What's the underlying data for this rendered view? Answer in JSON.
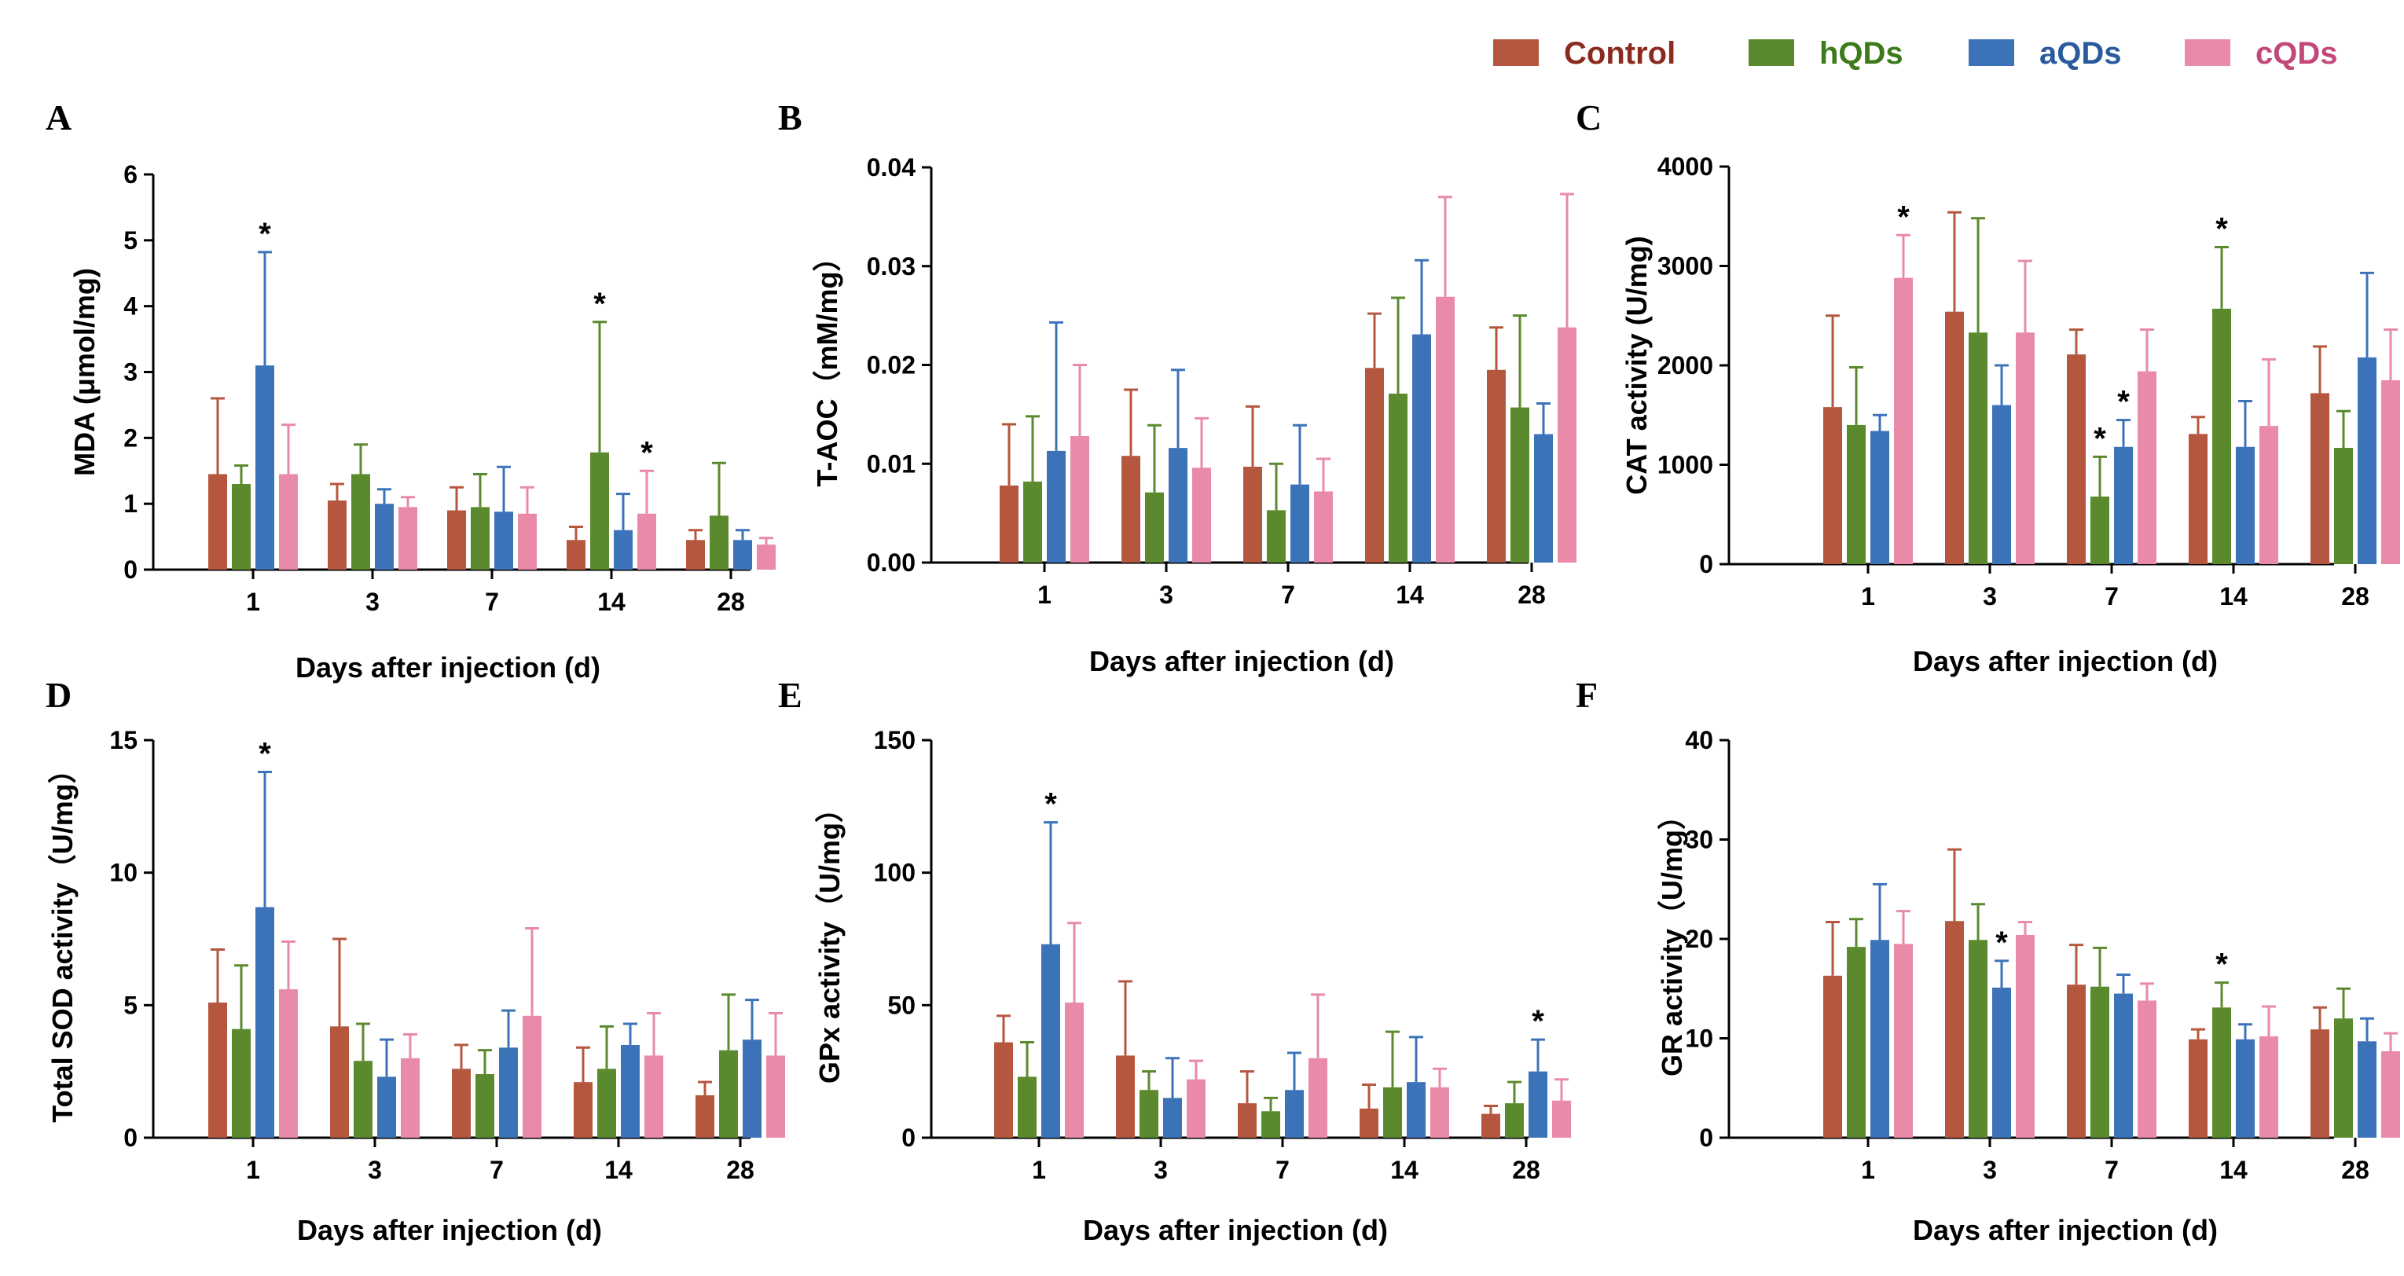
{
  "legend": [
    {
      "name": "Control",
      "color": "#b5573f",
      "text_color": "#8b2a1e"
    },
    {
      "name": "hQDs",
      "color": "#5b8a2e",
      "text_color": "#3d7a1a"
    },
    {
      "name": "aQDs",
      "color": "#3c73b8",
      "text_color": "#2a5a9e"
    },
    {
      "name": "cQDs",
      "color": "#e88aa8",
      "text_color": "#c2477a"
    }
  ],
  "chart_data": [
    {
      "panel": "A",
      "type": "bar",
      "title": "",
      "ylabel": "MDA (μmol/mg)",
      "xlabel": "Days after injection (d)",
      "ylim": [
        0,
        6
      ],
      "yticks": [
        "0",
        "1",
        "2",
        "3",
        "4",
        "5",
        "6"
      ],
      "categories": [
        "1",
        "3",
        "7",
        "14",
        "28"
      ],
      "series": [
        {
          "name": "Control",
          "values": [
            1.45,
            1.05,
            0.9,
            0.45,
            0.45
          ],
          "errors": [
            1.15,
            0.25,
            0.35,
            0.2,
            0.15
          ]
        },
        {
          "name": "hQDs",
          "values": [
            1.3,
            1.45,
            0.95,
            1.78,
            0.82
          ],
          "errors": [
            0.28,
            0.45,
            0.5,
            1.98,
            0.8
          ]
        },
        {
          "name": "aQDs",
          "values": [
            3.1,
            1.0,
            0.88,
            0.6,
            0.45
          ],
          "errors": [
            1.72,
            0.22,
            0.68,
            0.55,
            0.15
          ]
        },
        {
          "name": "cQDs",
          "values": [
            1.45,
            0.95,
            0.85,
            0.85,
            0.38
          ],
          "errors": [
            0.75,
            0.15,
            0.4,
            0.65,
            0.1
          ]
        }
      ],
      "annotations": [
        {
          "category": "1",
          "series": "aQDs",
          "text": "*"
        },
        {
          "category": "14",
          "series": "hQDs",
          "text": "*"
        },
        {
          "category": "14",
          "series": "cQDs",
          "text": "*"
        }
      ]
    },
    {
      "panel": "B",
      "type": "bar",
      "title": "",
      "ylabel": "T-AOC（mM/mg）",
      "xlabel": "Days after injection (d)",
      "ylim": [
        0,
        0.04
      ],
      "yticks": [
        "0.00",
        "0.01",
        "0.02",
        "0.03",
        "0.04"
      ],
      "categories": [
        "1",
        "3",
        "7",
        "14",
        "28"
      ],
      "series": [
        {
          "name": "Control",
          "values": [
            0.0078,
            0.0108,
            0.0097,
            0.0197,
            0.0195
          ],
          "errors": [
            0.0062,
            0.0067,
            0.0061,
            0.0055,
            0.0043
          ]
        },
        {
          "name": "hQDs",
          "values": [
            0.0082,
            0.0071,
            0.0053,
            0.0171,
            0.0157
          ],
          "errors": [
            0.0066,
            0.0068,
            0.0047,
            0.0097,
            0.0093
          ]
        },
        {
          "name": "aQDs",
          "values": [
            0.0113,
            0.0116,
            0.0079,
            0.0231,
            0.013
          ],
          "errors": [
            0.013,
            0.0079,
            0.006,
            0.0075,
            0.0031
          ]
        },
        {
          "name": "cQDs",
          "values": [
            0.0128,
            0.0096,
            0.0072,
            0.0269,
            0.0238
          ],
          "errors": [
            0.0072,
            0.005,
            0.0033,
            0.0101,
            0.0135
          ]
        }
      ],
      "annotations": []
    },
    {
      "panel": "C",
      "type": "bar",
      "title": "",
      "ylabel": "CAT activity (U/mg)",
      "xlabel": "Days after injection (d)",
      "ylim": [
        0,
        4000
      ],
      "yticks": [
        "0",
        "1000",
        "2000",
        "3000",
        "4000"
      ],
      "categories": [
        "1",
        "3",
        "7",
        "14",
        "28"
      ],
      "series": [
        {
          "name": "Control",
          "values": [
            1580,
            2540,
            2110,
            1310,
            1720
          ],
          "errors": [
            920,
            1000,
            250,
            170,
            470
          ]
        },
        {
          "name": "hQDs",
          "values": [
            1400,
            2330,
            680,
            2570,
            1170
          ],
          "errors": [
            580,
            1150,
            400,
            620,
            370
          ]
        },
        {
          "name": "aQDs",
          "values": [
            1340,
            1600,
            1180,
            1180,
            2080
          ],
          "errors": [
            160,
            400,
            270,
            460,
            850
          ]
        },
        {
          "name": "cQDs",
          "values": [
            2880,
            2330,
            1940,
            1390,
            1850
          ],
          "errors": [
            430,
            720,
            420,
            670,
            510
          ]
        }
      ],
      "annotations": [
        {
          "category": "1",
          "series": "cQDs",
          "text": "*"
        },
        {
          "category": "7",
          "series": "hQDs",
          "text": "*"
        },
        {
          "category": "7",
          "series": "aQDs",
          "text": "*"
        },
        {
          "category": "14",
          "series": "hQDs",
          "text": "*"
        }
      ]
    },
    {
      "panel": "D",
      "type": "bar",
      "title": "",
      "ylabel": "Total SOD activity（U/mg）",
      "xlabel": "Days after injection (d)",
      "ylim": [
        0,
        15
      ],
      "yticks": [
        "0",
        "5",
        "10",
        "15"
      ],
      "categories": [
        "1",
        "3",
        "7",
        "14",
        "28"
      ],
      "series": [
        {
          "name": "Control",
          "values": [
            5.1,
            4.2,
            2.6,
            2.1,
            1.6
          ],
          "errors": [
            2.0,
            3.3,
            0.9,
            1.3,
            0.5
          ]
        },
        {
          "name": "hQDs",
          "values": [
            4.1,
            2.9,
            2.4,
            2.6,
            3.3
          ],
          "errors": [
            2.4,
            1.4,
            0.9,
            1.6,
            2.1
          ]
        },
        {
          "name": "aQDs",
          "values": [
            8.7,
            2.3,
            3.4,
            3.5,
            3.7
          ],
          "errors": [
            5.1,
            1.4,
            1.4,
            0.8,
            1.5
          ]
        },
        {
          "name": "cQDs",
          "values": [
            5.6,
            3.0,
            4.6,
            3.1,
            3.1
          ],
          "errors": [
            1.8,
            0.9,
            3.3,
            1.6,
            1.6
          ]
        }
      ],
      "annotations": [
        {
          "category": "1",
          "series": "aQDs",
          "text": "*"
        }
      ]
    },
    {
      "panel": "E",
      "type": "bar",
      "title": "",
      "ylabel": "GPx activity（U/mg）",
      "xlabel": "Days after injection (d)",
      "ylim": [
        0,
        150
      ],
      "yticks": [
        "0",
        "50",
        "100",
        "150"
      ],
      "categories": [
        "1",
        "3",
        "7",
        "14",
        "28"
      ],
      "series": [
        {
          "name": "Control",
          "values": [
            36,
            31,
            13,
            11,
            9
          ],
          "errors": [
            10,
            28,
            12,
            9,
            3
          ]
        },
        {
          "name": "hQDs",
          "values": [
            23,
            18,
            10,
            19,
            13
          ],
          "errors": [
            13,
            7,
            5,
            21,
            8
          ]
        },
        {
          "name": "aQDs",
          "values": [
            73,
            15,
            18,
            21,
            25
          ],
          "errors": [
            46,
            15,
            14,
            17,
            12
          ]
        },
        {
          "name": "cQDs",
          "values": [
            51,
            22,
            30,
            19,
            14
          ],
          "errors": [
            30,
            7,
            24,
            7,
            8
          ]
        }
      ],
      "annotations": [
        {
          "category": "1",
          "series": "aQDs",
          "text": "*"
        },
        {
          "category": "28",
          "series": "aQDs",
          "text": "*"
        }
      ]
    },
    {
      "panel": "F",
      "type": "bar",
      "title": "",
      "ylabel": "GR activity（U/mg）",
      "xlabel": "Days after injection (d)",
      "ylim": [
        0,
        40
      ],
      "yticks": [
        "0",
        "10",
        "20",
        "30",
        "40"
      ],
      "categories": [
        "1",
        "3",
        "7",
        "14",
        "28"
      ],
      "series": [
        {
          "name": "Control",
          "values": [
            16.3,
            21.8,
            15.4,
            9.9,
            10.9
          ],
          "errors": [
            5.4,
            7.2,
            4.0,
            1.0,
            2.2
          ]
        },
        {
          "name": "hQDs",
          "values": [
            19.2,
            19.9,
            15.2,
            13.1,
            12.0
          ],
          "errors": [
            2.8,
            3.6,
            3.9,
            2.5,
            3.0
          ]
        },
        {
          "name": "aQDs",
          "values": [
            19.9,
            15.1,
            14.5,
            9.9,
            9.7
          ],
          "errors": [
            5.6,
            2.7,
            1.9,
            1.5,
            2.3
          ]
        },
        {
          "name": "cQDs",
          "values": [
            19.5,
            20.4,
            13.8,
            10.2,
            8.7
          ],
          "errors": [
            3.3,
            1.3,
            1.7,
            3.0,
            1.8
          ]
        }
      ],
      "annotations": [
        {
          "category": "3",
          "series": "aQDs",
          "text": "*"
        },
        {
          "category": "14",
          "series": "hQDs",
          "text": "*"
        }
      ]
    }
  ]
}
